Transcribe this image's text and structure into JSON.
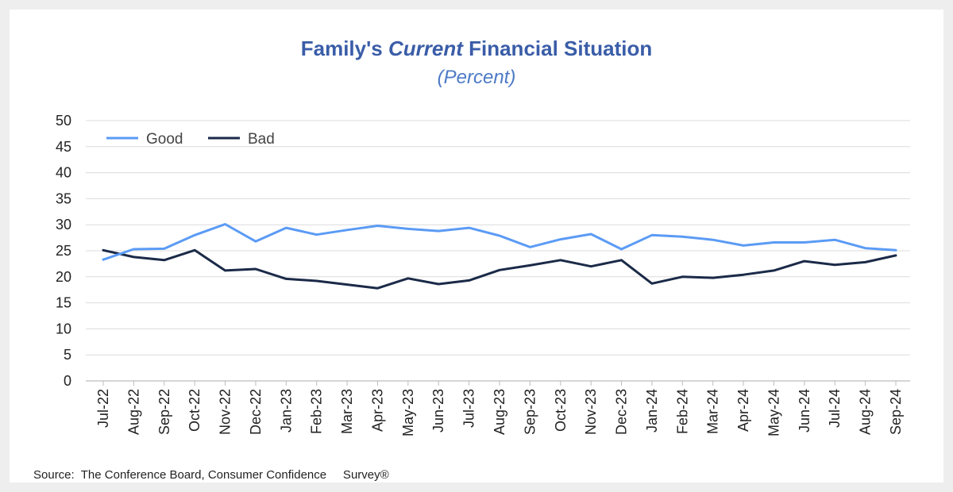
{
  "chart_data": {
    "type": "line",
    "title_pre": "Family's ",
    "title_em": "Current",
    "title_post": " Financial Situation",
    "subtitle": "(Percent)",
    "source": "Source:  The Conference Board, Consumer Confidence     Survey®",
    "x": [
      "Jul-22",
      "Aug-22",
      "Sep-22",
      "Oct-22",
      "Nov-22",
      "Dec-22",
      "Jan-23",
      "Feb-23",
      "Mar-23",
      "Apr-23",
      "May-23",
      "Jun-23",
      "Jul-23",
      "Aug-23",
      "Sep-23",
      "Oct-23",
      "Nov-23",
      "Dec-23",
      "Jan-24",
      "Feb-24",
      "Mar-24",
      "Apr-24",
      "May-24",
      "Jun-24",
      "Jul-24",
      "Aug-24",
      "Sep-24"
    ],
    "ylim": [
      0,
      50
    ],
    "yticks": [
      0,
      5,
      10,
      15,
      20,
      25,
      30,
      35,
      40,
      45,
      50
    ],
    "grid": true,
    "legend_position": "top-left",
    "series": [
      {
        "name": "Good",
        "color": "#5b9bf5",
        "values": [
          23.3,
          25.3,
          25.4,
          28.0,
          30.1,
          26.8,
          29.4,
          28.1,
          29.0,
          29.8,
          29.2,
          28.8,
          29.4,
          27.9,
          25.7,
          27.2,
          28.2,
          25.3,
          28.0,
          27.7,
          27.1,
          26.0,
          26.6,
          26.6,
          27.1,
          25.5,
          25.1
        ]
      },
      {
        "name": "Bad",
        "color": "#1b2a48",
        "values": [
          25.1,
          23.8,
          23.2,
          25.1,
          21.2,
          21.5,
          19.6,
          19.2,
          18.5,
          17.8,
          19.7,
          18.6,
          19.3,
          21.3,
          22.2,
          23.2,
          22.0,
          23.2,
          18.7,
          20.0,
          19.8,
          20.4,
          21.2,
          23.0,
          22.3,
          22.8,
          24.1
        ]
      }
    ]
  }
}
